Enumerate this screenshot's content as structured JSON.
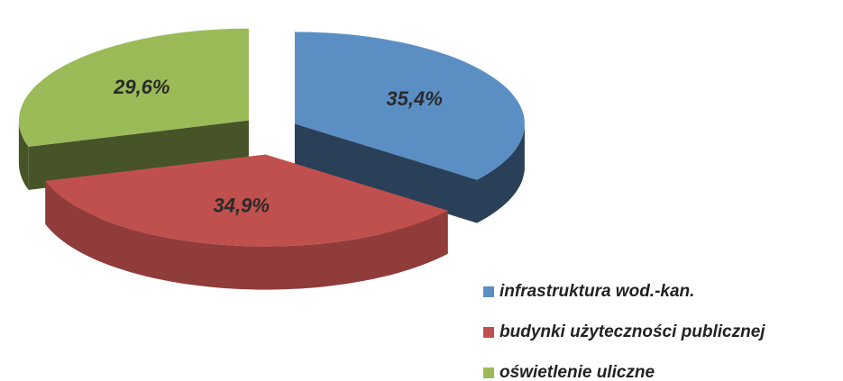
{
  "chart_data": {
    "type": "pie",
    "categories": [
      "infrastruktura wod.-kan.",
      "budynki użyteczności publicznej",
      "oświetlenie uliczne"
    ],
    "values": [
      35.4,
      34.9,
      29.6
    ],
    "value_labels": [
      "35,4%",
      "34,9%",
      "29,6%"
    ],
    "colors": [
      "#5b8fc4",
      "#c0504d",
      "#9bbb59"
    ],
    "legend": "bottom-right"
  }
}
